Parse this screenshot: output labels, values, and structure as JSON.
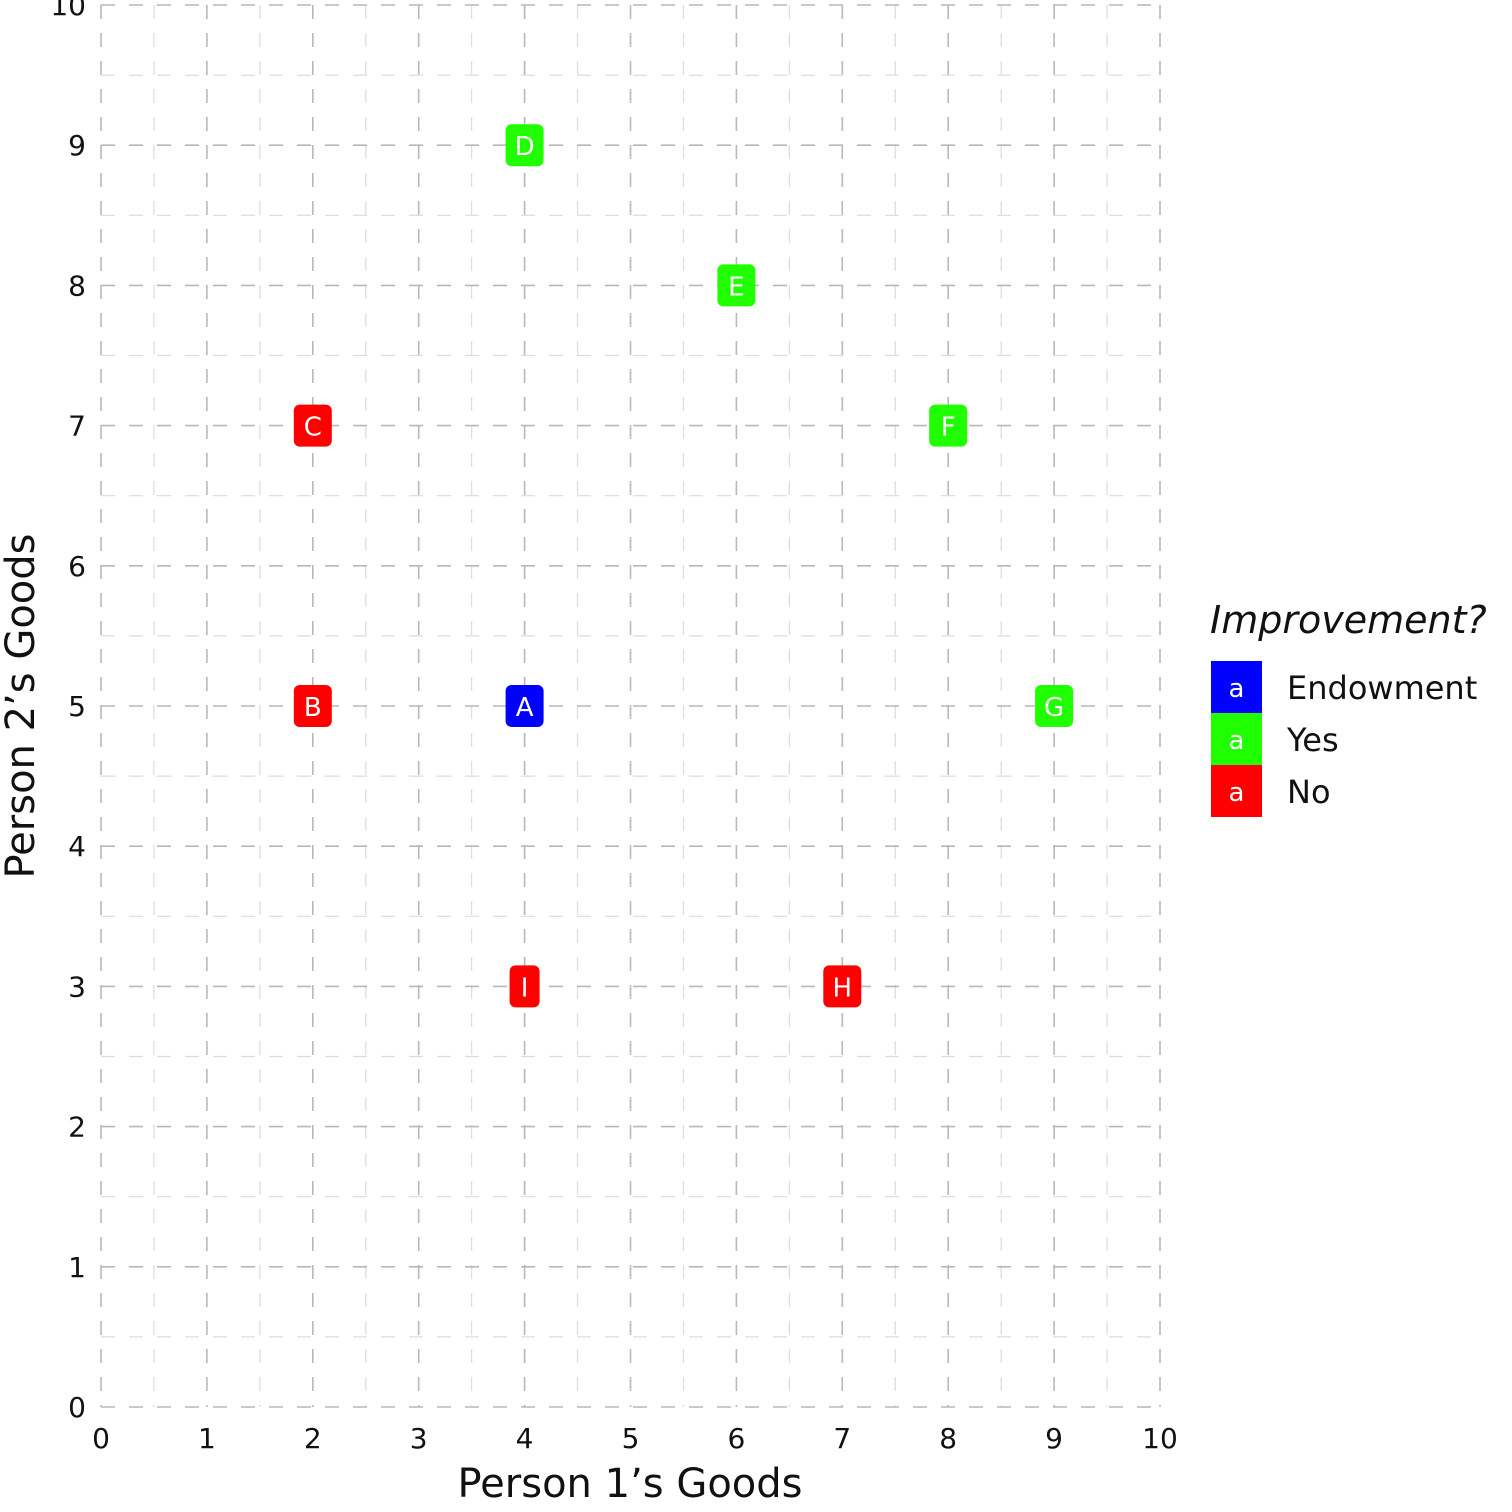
{
  "chart_data": {
    "type": "scatter",
    "title": "",
    "xlabel": "Person 1’s Goods",
    "ylabel": "Person 2’s Goods",
    "xlim": [
      0,
      10
    ],
    "ylim": [
      0,
      10
    ],
    "xticks": [
      "0",
      "1",
      "2",
      "3",
      "4",
      "5",
      "6",
      "7",
      "8",
      "9",
      "10"
    ],
    "yticks": [
      "0",
      "1",
      "2",
      "3",
      "4",
      "5",
      "6",
      "7",
      "8",
      "9",
      "10"
    ],
    "grid": "dashed major and minor",
    "legend": {
      "title": "Improvement?",
      "placement": "right",
      "key_glyph": "a",
      "entries": [
        {
          "label": "Endowment",
          "color": "#0000FF"
        },
        {
          "label": "Yes",
          "color": "#1FFF00"
        },
        {
          "label": "No",
          "color": "#FF0000"
        }
      ]
    },
    "points": [
      {
        "label": "A",
        "x": 4,
        "y": 5,
        "group": "Endowment"
      },
      {
        "label": "B",
        "x": 2,
        "y": 5,
        "group": "No"
      },
      {
        "label": "C",
        "x": 2,
        "y": 7,
        "group": "No"
      },
      {
        "label": "D",
        "x": 4,
        "y": 9,
        "group": "Yes"
      },
      {
        "label": "E",
        "x": 6,
        "y": 8,
        "group": "Yes"
      },
      {
        "label": "F",
        "x": 8,
        "y": 7,
        "group": "Yes"
      },
      {
        "label": "G",
        "x": 9,
        "y": 5,
        "group": "Yes"
      },
      {
        "label": "H",
        "x": 7,
        "y": 3,
        "group": "No"
      },
      {
        "label": "I",
        "x": 4,
        "y": 3,
        "group": "No"
      }
    ]
  }
}
